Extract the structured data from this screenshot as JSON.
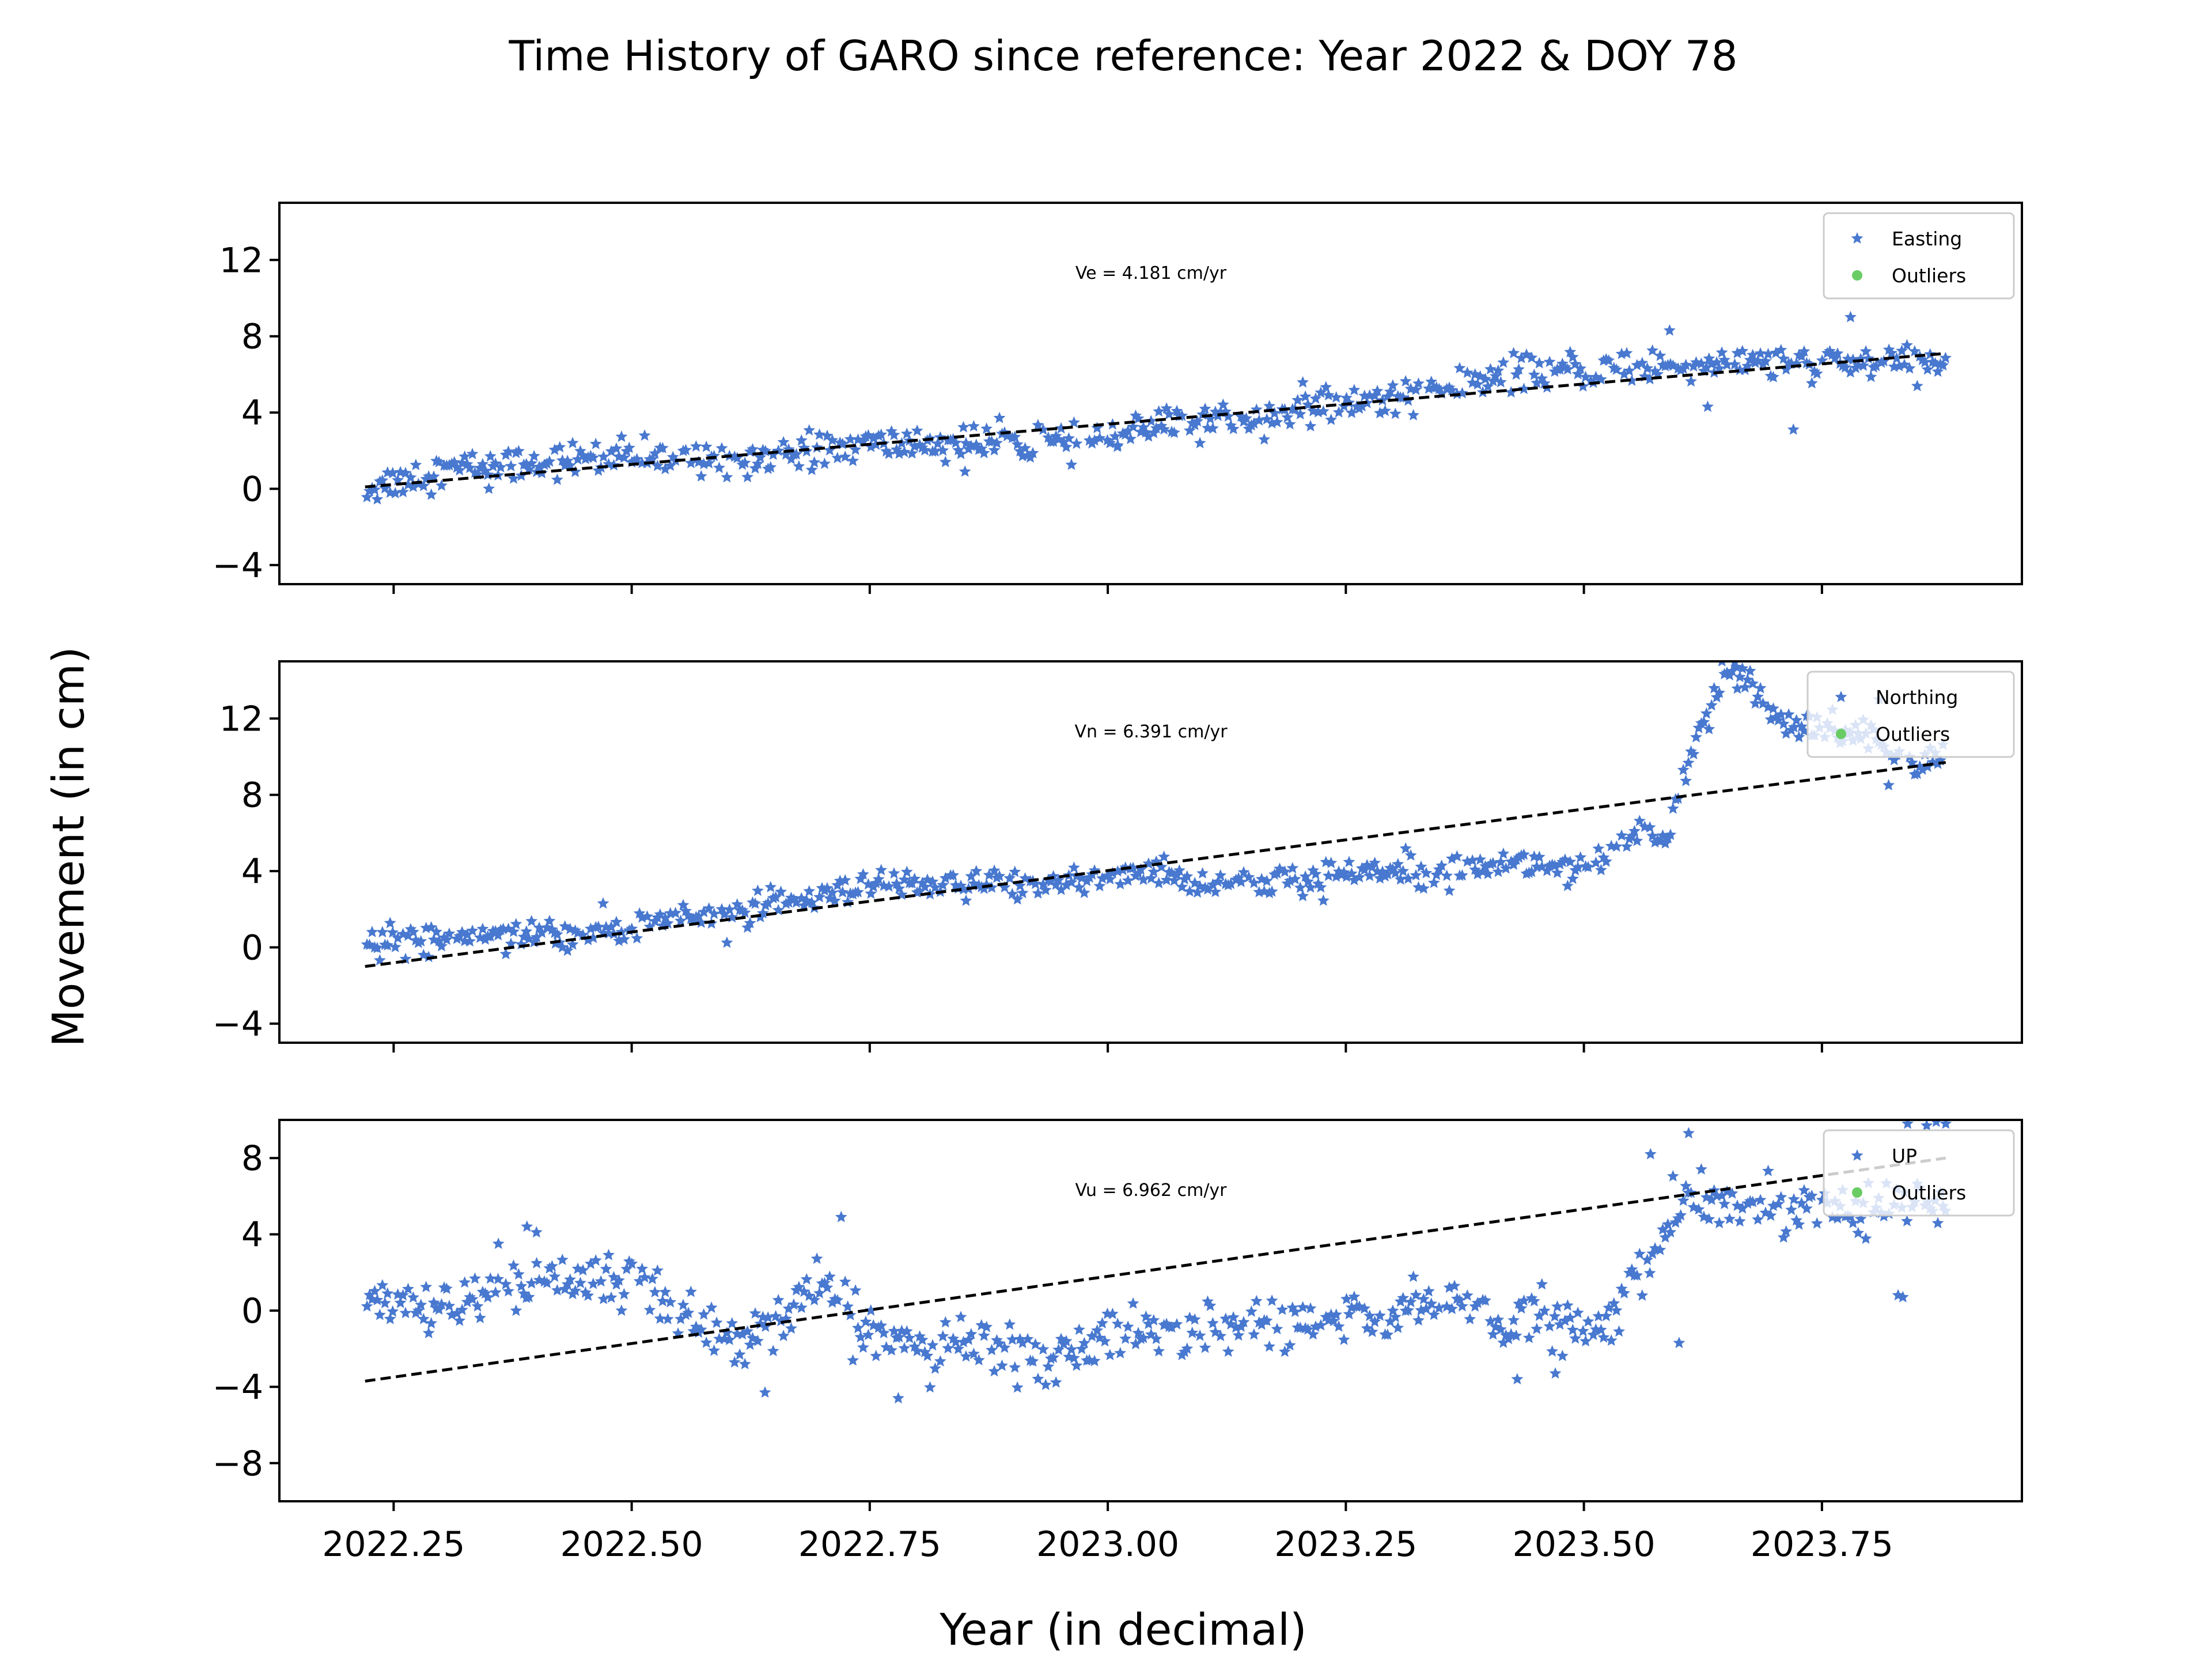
{
  "chart_data": {
    "type": "scatter",
    "title": "Time History of GARO since reference: Year 2022 & DOY 78",
    "xlabel": "Year (in decimal)",
    "ylabel": "Movement (in cm)",
    "xlim": [
      2022.13,
      2023.96
    ],
    "x_ticks": [
      "2022.25",
      "2022.50",
      "2022.75",
      "2023.00",
      "2023.25",
      "2023.50",
      "2023.75"
    ],
    "x_tick_values": [
      2022.25,
      2022.5,
      2022.75,
      2023.0,
      2023.25,
      2023.5,
      2023.75
    ],
    "grid": false,
    "colors": {
      "data": "#4878cf",
      "outliers": "#6acc65",
      "trend": "#000000"
    },
    "panels": [
      {
        "component": "Easting",
        "ylim": [
          -5,
          15
        ],
        "y_ticks": [
          "−4",
          "0",
          "4",
          "8",
          "12"
        ],
        "y_tick_values": [
          -4,
          0,
          4,
          8,
          12
        ],
        "velocity_text": "Ve =  4.181 cm/yr",
        "legend": [
          "Easting",
          "Outliers"
        ],
        "trend": {
          "x": [
            2022.22,
            2023.88
          ],
          "y": [
            0.1,
            7.1
          ]
        },
        "anchors": [
          [
            2022.22,
            0.0
          ],
          [
            2022.3,
            1.0
          ],
          [
            2022.45,
            1.6
          ],
          [
            2022.6,
            1.6
          ],
          [
            2022.75,
            2.3
          ],
          [
            2022.85,
            2.4
          ],
          [
            2022.95,
            2.3
          ],
          [
            2023.05,
            3.2
          ],
          [
            2023.15,
            3.8
          ],
          [
            2023.25,
            4.4
          ],
          [
            2023.35,
            5.3
          ],
          [
            2023.45,
            6.1
          ],
          [
            2023.55,
            6.3
          ],
          [
            2023.65,
            6.7
          ],
          [
            2023.75,
            6.5
          ],
          [
            2023.88,
            6.6
          ]
        ],
        "noise": 0.45,
        "points": [
          [
            2022.85,
            0.9
          ],
          [
            2023.72,
            3.1
          ],
          [
            2023.78,
            9.0
          ],
          [
            2023.63,
            4.3
          ],
          [
            2023.59,
            8.3
          ],
          [
            2022.35,
            0.0
          ],
          [
            2023.01,
            2.2
          ]
        ]
      },
      {
        "component": "Northing",
        "ylim": [
          -5,
          15
        ],
        "y_ticks": [
          "−4",
          "0",
          "4",
          "8",
          "12"
        ],
        "y_tick_values": [
          -4,
          0,
          4,
          8,
          12
        ],
        "velocity_text": "Vn =  6.391 cm/yr",
        "legend": [
          "Northing",
          "Outliers"
        ],
        "trend": {
          "x": [
            2022.22,
            2023.88
          ],
          "y": [
            -1.0,
            9.7
          ]
        },
        "anchors": [
          [
            2022.22,
            0.2
          ],
          [
            2022.35,
            0.8
          ],
          [
            2022.45,
            0.7
          ],
          [
            2022.55,
            1.6
          ],
          [
            2022.65,
            2.1
          ],
          [
            2022.75,
            3.1
          ],
          [
            2022.85,
            3.2
          ],
          [
            2022.95,
            3.4
          ],
          [
            2023.05,
            4.0
          ],
          [
            2023.1,
            3.4
          ],
          [
            2023.2,
            3.4
          ],
          [
            2023.3,
            4.2
          ],
          [
            2023.4,
            4.4
          ],
          [
            2023.5,
            4.3
          ],
          [
            2023.53,
            4.5
          ],
          [
            2023.55,
            6.0
          ],
          [
            2023.585,
            5.4
          ],
          [
            2023.6,
            8.5
          ],
          [
            2023.63,
            12.0
          ],
          [
            2023.65,
            14.5
          ],
          [
            2023.68,
            13.4
          ],
          [
            2023.72,
            11.3
          ],
          [
            2023.76,
            11.7
          ],
          [
            2023.8,
            11.3
          ],
          [
            2023.83,
            9.7
          ],
          [
            2023.88,
            10.2
          ]
        ],
        "noise": 0.4,
        "points": [
          [
            2023.645,
            15.0
          ],
          [
            2023.66,
            14.7
          ],
          [
            2023.82,
            8.5
          ],
          [
            2023.81,
            13.0
          ],
          [
            2022.42,
            0.2
          ],
          [
            2022.47,
            2.3
          ]
        ]
      },
      {
        "component": "UP",
        "ylim": [
          -10,
          10
        ],
        "y_ticks": [
          "−8",
          "−4",
          "0",
          "4",
          "8"
        ],
        "y_tick_values": [
          -8,
          -4,
          0,
          4,
          8
        ],
        "velocity_text": "Vu =  6.962 cm/yr",
        "legend": [
          "UP",
          "Outliers"
        ],
        "trend": {
          "x": [
            2022.22,
            2023.88
          ],
          "y": [
            -3.7,
            8.0
          ]
        },
        "anchors": [
          [
            2022.22,
            0.5
          ],
          [
            2022.3,
            0.0
          ],
          [
            2022.35,
            1.0
          ],
          [
            2022.42,
            1.5
          ],
          [
            2022.48,
            1.8
          ],
          [
            2022.55,
            0.0
          ],
          [
            2022.62,
            -1.5
          ],
          [
            2022.66,
            -0.8
          ],
          [
            2022.7,
            1.5
          ],
          [
            2022.74,
            -1.0
          ],
          [
            2022.8,
            -1.8
          ],
          [
            2022.88,
            -2.0
          ],
          [
            2022.94,
            -2.5
          ],
          [
            2023.0,
            -1.2
          ],
          [
            2023.05,
            -1.5
          ],
          [
            2023.1,
            -0.8
          ],
          [
            2023.2,
            -0.6
          ],
          [
            2023.3,
            -0.4
          ],
          [
            2023.36,
            1.0
          ],
          [
            2023.42,
            -1.0
          ],
          [
            2023.46,
            -0.5
          ],
          [
            2023.5,
            -1.0
          ],
          [
            2023.53,
            -0.6
          ],
          [
            2023.55,
            2.0
          ],
          [
            2023.58,
            3.0
          ],
          [
            2023.6,
            5.5
          ]
        ],
        "noise": 0.7,
        "points": [
          [
            2022.39,
            4.4
          ],
          [
            2022.4,
            4.1
          ],
          [
            2022.36,
            3.5
          ],
          [
            2022.72,
            4.9
          ],
          [
            2022.64,
            -4.3
          ],
          [
            2022.78,
            -4.6
          ],
          [
            2023.43,
            -3.6
          ],
          [
            2023.47,
            -3.3
          ],
          [
            2023.57,
            8.2
          ],
          [
            2023.61,
            9.3
          ],
          [
            2023.6,
            -1.7
          ],
          [
            2023.83,
            0.8
          ],
          [
            2023.835,
            0.7
          ],
          [
            2023.84,
            9.8
          ],
          [
            2023.86,
            9.7
          ],
          [
            2023.87,
            9.9
          ],
          [
            2023.88,
            9.8
          ]
        ]
      }
    ]
  }
}
